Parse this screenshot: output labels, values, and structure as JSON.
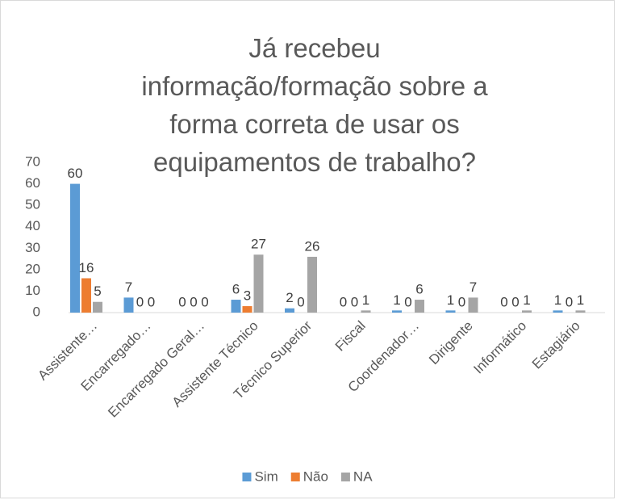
{
  "chart_data": {
    "type": "bar",
    "title": "Já recebeu informação/formação sobre a forma correta de usar os equipamentos de trabalho?",
    "categories": [
      "Assistente…",
      "Encarregado…",
      "Encarregado Geral…",
      "Assistente Técnico",
      "Técnico Superior",
      "Fiscal",
      "Coordenador…",
      "Dirigente",
      "Informático",
      "Estagiário"
    ],
    "series": [
      {
        "name": "Sim",
        "color": "#5b9bd5",
        "values": [
          60,
          7,
          0,
          6,
          2,
          0,
          1,
          1,
          0,
          1
        ]
      },
      {
        "name": "Não",
        "color": "#ed7d31",
        "values": [
          16,
          0,
          0,
          3,
          0,
          0,
          0,
          0,
          0,
          0
        ]
      },
      {
        "name": "NA",
        "color": "#a5a5a5",
        "values": [
          5,
          0,
          0,
          27,
          26,
          1,
          6,
          7,
          1,
          1
        ]
      }
    ],
    "ylim": [
      0,
      70
    ],
    "yticks": [
      0,
      10,
      20,
      30,
      40,
      50,
      60,
      70
    ],
    "grid": false,
    "legend": "bottom"
  }
}
